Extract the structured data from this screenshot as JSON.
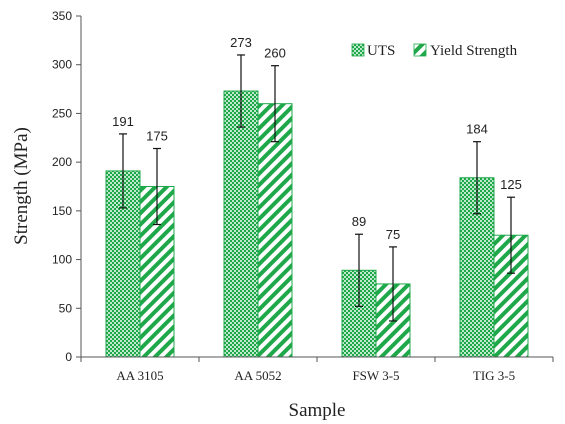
{
  "chart_data": {
    "type": "bar",
    "title": "",
    "xlabel": "Sample",
    "ylabel": "Strength (MPa)",
    "ylim": [
      0,
      350
    ],
    "yticks": [
      0,
      50,
      100,
      150,
      200,
      250,
      300,
      350
    ],
    "grid": false,
    "legend_position": "top-right",
    "categories": [
      "AA 3105",
      "AA 5052",
      "FSW 3-5",
      "TIG 3-5"
    ],
    "series": [
      {
        "name": "UTS",
        "values": [
          191,
          273,
          89,
          184
        ],
        "error": [
          38,
          37,
          37,
          37
        ],
        "pattern": "dotted-grid",
        "color": "#1ea84a"
      },
      {
        "name": "Yield Strength",
        "values": [
          175,
          260,
          75,
          125
        ],
        "error": [
          39,
          39,
          38,
          39
        ],
        "pattern": "diagonal-stripes",
        "color": "#1ea84a"
      }
    ]
  }
}
